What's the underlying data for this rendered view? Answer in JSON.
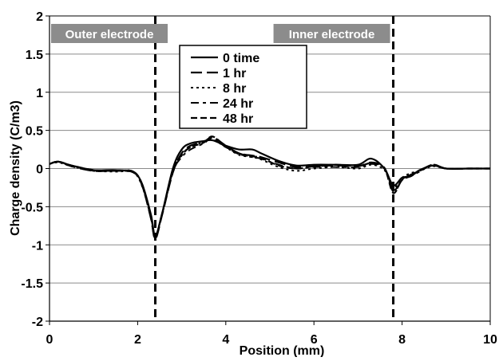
{
  "chart_data": {
    "type": "line",
    "xlabel": "Position (mm)",
    "ylabel": "Charge density (C/m3)",
    "xlim": [
      0,
      10
    ],
    "ylim": [
      -2,
      2
    ],
    "xticks": [
      "0",
      "2",
      "4",
      "6",
      "8",
      "10"
    ],
    "yticks": [
      "-2",
      "-1.5",
      "-1",
      "-0.5",
      "0",
      "0.5",
      "1",
      "1.5",
      "2"
    ],
    "grid": "horizontal",
    "legend_position": "top-center",
    "electrode_lines": [
      {
        "x": 2.4,
        "label": "Outer electrode"
      },
      {
        "x": 7.8,
        "label": "Inner electrode"
      }
    ],
    "series": [
      {
        "name": "0 time",
        "x": [
          0,
          0.2,
          0.5,
          1.0,
          1.5,
          1.9,
          2.1,
          2.3,
          2.4,
          2.55,
          2.8,
          3.0,
          3.2,
          3.5,
          3.7,
          4.0,
          4.3,
          4.6,
          4.8,
          5.2,
          5.6,
          6.0,
          6.5,
          7.0,
          7.3,
          7.6,
          7.8,
          8.0,
          8.2,
          8.4,
          8.7,
          9.0,
          9.5,
          10
        ],
        "y": [
          0.06,
          0.09,
          0.04,
          -0.02,
          -0.02,
          -0.05,
          -0.2,
          -0.6,
          -0.88,
          -0.6,
          0.0,
          0.25,
          0.33,
          0.36,
          0.37,
          0.3,
          0.25,
          0.25,
          0.2,
          0.1,
          0.04,
          0.05,
          0.05,
          0.05,
          0.13,
          0.0,
          -0.22,
          -0.12,
          -0.1,
          -0.02,
          0.04,
          0.0,
          0.0,
          0.0
        ]
      },
      {
        "name": "1 hr",
        "x": [
          0,
          0.2,
          0.5,
          1.0,
          1.5,
          1.9,
          2.1,
          2.3,
          2.4,
          2.55,
          2.8,
          3.0,
          3.2,
          3.5,
          3.7,
          4.0,
          4.3,
          4.6,
          4.8,
          5.2,
          5.6,
          6.0,
          6.5,
          7.0,
          7.3,
          7.6,
          7.8,
          8.0,
          8.2,
          8.4,
          8.7,
          9.0,
          9.5,
          10
        ],
        "y": [
          0.06,
          0.09,
          0.03,
          -0.03,
          -0.03,
          -0.04,
          -0.22,
          -0.65,
          -0.92,
          -0.62,
          -0.05,
          0.2,
          0.3,
          0.35,
          0.41,
          0.3,
          0.2,
          0.17,
          0.15,
          0.08,
          0.02,
          0.03,
          0.04,
          0.03,
          0.08,
          0.01,
          -0.3,
          -0.15,
          -0.08,
          -0.03,
          0.05,
          0.0,
          0.0,
          0.0
        ]
      },
      {
        "name": "8 hr",
        "x": [
          0,
          0.2,
          0.5,
          1.0,
          1.5,
          1.9,
          2.1,
          2.3,
          2.4,
          2.55,
          2.8,
          3.0,
          3.2,
          3.5,
          3.7,
          4.0,
          4.3,
          4.6,
          4.8,
          5.2,
          5.6,
          6.0,
          6.5,
          7.0,
          7.3,
          7.6,
          7.8,
          8.0,
          8.2,
          8.4,
          8.7,
          9.0,
          9.5,
          10
        ],
        "y": [
          0.06,
          0.08,
          0.03,
          -0.03,
          -0.04,
          -0.05,
          -0.23,
          -0.63,
          -0.9,
          -0.6,
          -0.05,
          0.17,
          0.28,
          0.35,
          0.38,
          0.28,
          0.18,
          0.15,
          0.12,
          0.02,
          -0.03,
          0.0,
          0.02,
          0.0,
          0.05,
          -0.02,
          -0.25,
          -0.12,
          -0.06,
          -0.03,
          0.03,
          0.0,
          0.0,
          0.0
        ]
      },
      {
        "name": "24 hr",
        "x": [
          0,
          0.2,
          0.5,
          1.0,
          1.5,
          1.9,
          2.1,
          2.3,
          2.4,
          2.55,
          2.8,
          3.0,
          3.2,
          3.5,
          3.7,
          4.0,
          4.3,
          4.6,
          4.8,
          5.2,
          5.6,
          6.0,
          6.5,
          7.0,
          7.3,
          7.6,
          7.8,
          8.0,
          8.2,
          8.4,
          8.7,
          9.0,
          9.5,
          10
        ],
        "y": [
          0.06,
          0.09,
          0.04,
          -0.03,
          -0.03,
          -0.05,
          -0.2,
          -0.62,
          -0.89,
          -0.6,
          -0.04,
          0.15,
          0.25,
          0.33,
          0.4,
          0.28,
          0.2,
          0.15,
          0.13,
          0.05,
          0.0,
          0.02,
          0.02,
          0.02,
          0.06,
          0.0,
          -0.28,
          -0.15,
          -0.1,
          -0.04,
          0.05,
          0.0,
          0.0,
          0.0
        ]
      },
      {
        "name": "48 hr",
        "x": [
          0,
          0.2,
          0.5,
          1.0,
          1.5,
          1.9,
          2.1,
          2.3,
          2.4,
          2.55,
          2.8,
          3.0,
          3.2,
          3.5,
          3.7,
          4.0,
          4.3,
          4.6,
          4.8,
          5.2,
          5.6,
          6.0,
          6.5,
          7.0,
          7.3,
          7.6,
          7.8,
          8.0,
          8.2,
          8.4,
          8.7,
          9.0,
          9.5,
          10
        ],
        "y": [
          0.06,
          0.09,
          0.04,
          -0.02,
          -0.03,
          -0.04,
          -0.21,
          -0.64,
          -0.91,
          -0.61,
          -0.04,
          0.18,
          0.28,
          0.34,
          0.42,
          0.29,
          0.19,
          0.16,
          0.14,
          0.04,
          0.0,
          0.03,
          0.05,
          0.03,
          0.07,
          0.0,
          -0.32,
          -0.14,
          -0.09,
          -0.03,
          0.04,
          0.0,
          0.0,
          0.0
        ]
      }
    ]
  }
}
